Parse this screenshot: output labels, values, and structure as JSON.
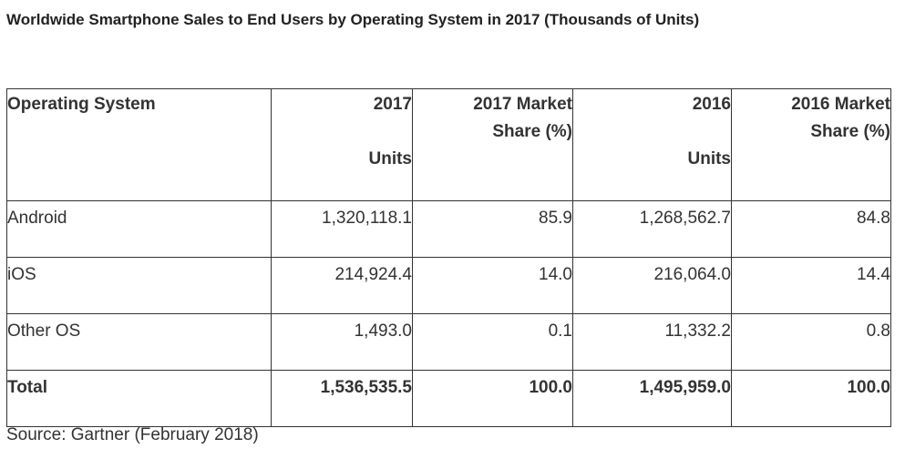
{
  "title": "Worldwide Smartphone Sales to End Users by Operating System in 2017 (Thousands of Units)",
  "columns": [
    {
      "line1": "Operating System",
      "line2": "",
      "line3": ""
    },
    {
      "line1": "2017",
      "line2": "",
      "line3": "Units"
    },
    {
      "line1": "2017 Market",
      "line2": "Share (%)",
      "line3": ""
    },
    {
      "line1": "2016",
      "line2": "",
      "line3": "Units"
    },
    {
      "line1": "2016 Market",
      "line2": "Share (%)",
      "line3": ""
    }
  ],
  "rows": [
    [
      "Android",
      "1,320,118.1",
      "85.9",
      "1,268,562.7",
      "84.8"
    ],
    [
      "iOS",
      "214,924.4",
      "14.0",
      "216,064.0",
      "14.4"
    ],
    [
      "Other OS",
      "1,493.0",
      "0.1",
      "11,332.2",
      "0.8"
    ],
    [
      "Total",
      "1,536,535.5",
      "100.0",
      "1,495,959.0",
      "100.0"
    ]
  ],
  "source": "Source: Gartner (February 2018)"
}
